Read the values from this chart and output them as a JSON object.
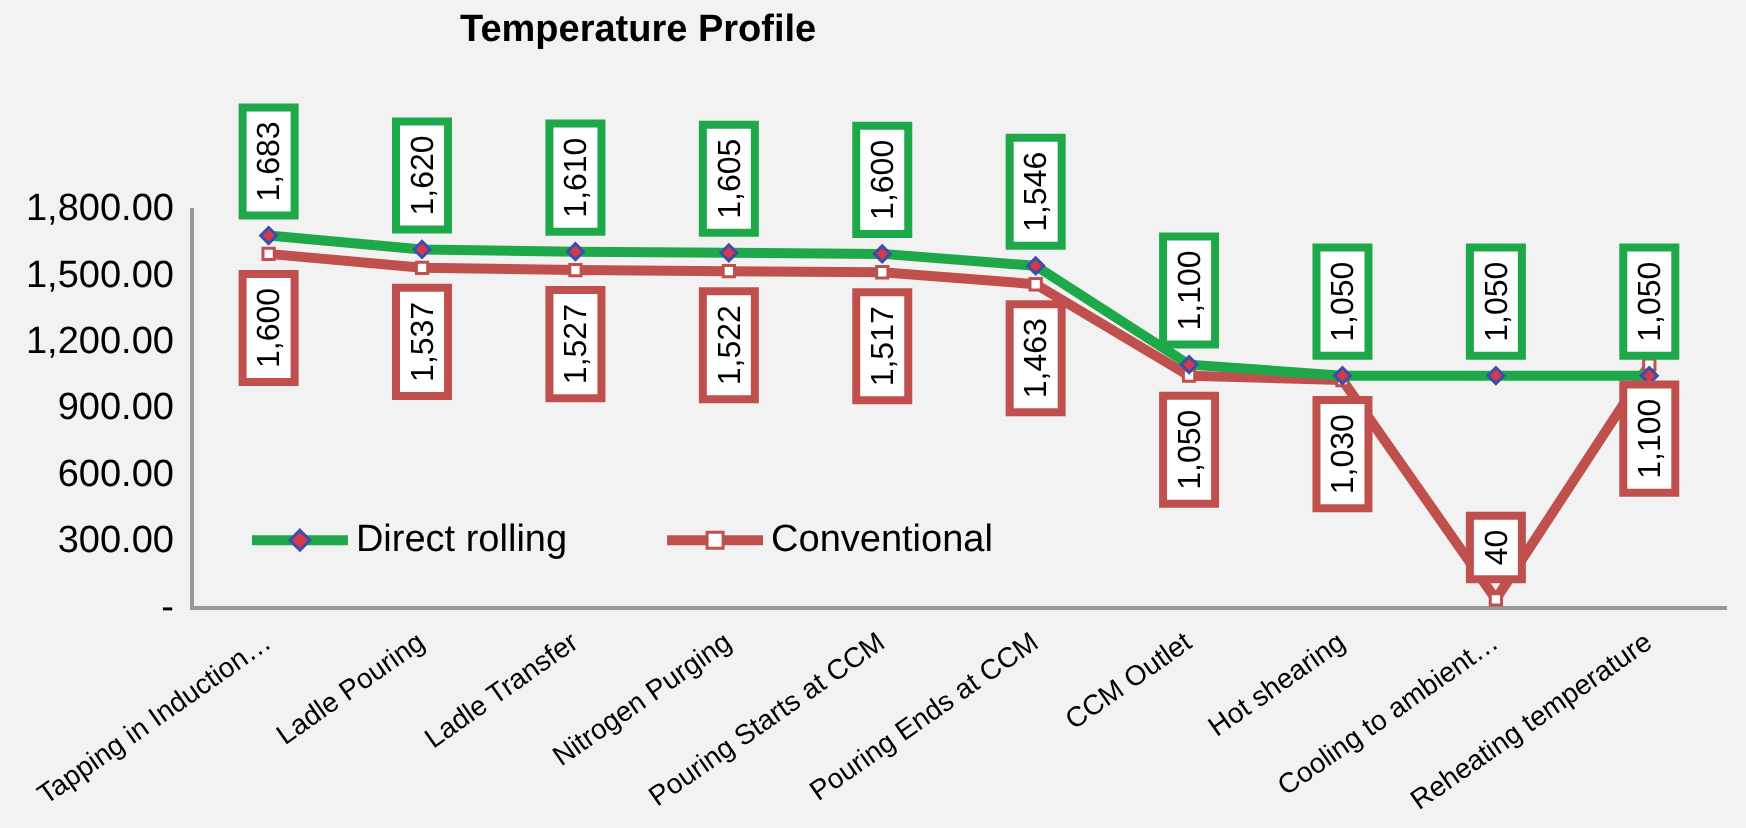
{
  "chart_data": {
    "type": "line",
    "title": "Temperature Profile",
    "categories": [
      "Tapping in Induction…",
      "Ladle Pouring",
      "Ladle Transfer",
      "Nitrogen Purging",
      "Pouring Starts at CCM",
      "Pouring Ends at CCM",
      "CCM Outlet",
      "Hot shearing",
      "Cooling to ambient…",
      "Reheating temperature"
    ],
    "series": [
      {
        "name": "Direct rolling",
        "color": "#1ea84a",
        "marker": "diamond",
        "values": [
          1683,
          1620,
          1610,
          1605,
          1600,
          1546,
          1100,
          1050,
          1050,
          1050
        ],
        "value_labels": [
          "1,683",
          "1,620",
          "1,610",
          "1,605",
          "1,600",
          "1,546",
          "1,100",
          "1,050",
          "1,050",
          "1,050"
        ]
      },
      {
        "name": "Conventional",
        "color": "#c0504d",
        "marker": "square",
        "values": [
          1600,
          1537,
          1527,
          1522,
          1517,
          1463,
          1050,
          1030,
          40,
          1100
        ],
        "value_labels": [
          "1,600",
          "1,537",
          "1,527",
          "1,522",
          "1,517",
          "1,463",
          "1,050",
          "1,030",
          "40",
          "1,100"
        ]
      }
    ],
    "ylim": [
      0,
      1800
    ],
    "yticks": [
      {
        "value": 0,
        "label": "-"
      },
      {
        "value": 300,
        "label": "300.00"
      },
      {
        "value": 600,
        "label": "600.00"
      },
      {
        "value": 900,
        "label": "900.00"
      },
      {
        "value": 1200,
        "label": "1,200.00"
      },
      {
        "value": 1500,
        "label": "1,500.00"
      },
      {
        "value": 1800,
        "label": "1,800.00"
      }
    ],
    "grid": false,
    "legend": "bottom left",
    "line_style": "solid"
  }
}
